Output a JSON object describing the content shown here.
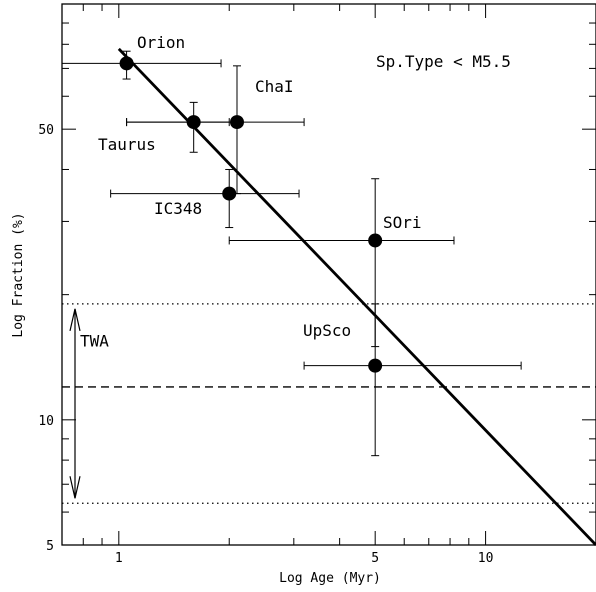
{
  "chart_data": {
    "type": "scatter",
    "xscale": "log",
    "yscale": "log",
    "xlim": [
      0.7,
      20
    ],
    "ylim": [
      5,
      100
    ],
    "xlabel": "Log Age (Myr)",
    "ylabel": "Log Fraction (%)",
    "xticks_labeled": [
      1,
      5,
      10
    ],
    "yticks_labeled": [
      5,
      10,
      50
    ],
    "annotation": "Sp.Type < M5.5",
    "points": [
      {
        "label": "Orion",
        "x": 1.05,
        "y": 72,
        "xerr_low": 0.7,
        "xerr_high": 1.9,
        "yerr_low": 66,
        "yerr_high": 77
      },
      {
        "label": "Taurus",
        "x": 1.6,
        "y": 52,
        "xerr_low": 1.05,
        "xerr_high": 2.0,
        "yerr_low": 44,
        "yerr_high": 58
      },
      {
        "label": "ChaI",
        "x": 2.1,
        "y": 52,
        "xerr_low": 1.05,
        "xerr_high": 3.2,
        "yerr_low": 35,
        "yerr_high": 71
      },
      {
        "label": "IC348",
        "x": 2.0,
        "y": 35,
        "xerr_low": 0.95,
        "xerr_high": 3.1,
        "yerr_low": 29,
        "yerr_high": 40
      },
      {
        "label": "SOri",
        "x": 5.0,
        "y": 27,
        "xerr_low": 2.0,
        "xerr_high": 8.2,
        "yerr_low": 15,
        "yerr_high": 38
      },
      {
        "label": "UpSco",
        "x": 5.0,
        "y": 13.5,
        "xerr_low": 3.2,
        "xerr_high": 12.5,
        "yerr_low": 8.2,
        "yerr_high": 19
      }
    ],
    "fit_line": {
      "x": [
        1.0,
        20.0
      ],
      "y": [
        78.0,
        5.0
      ]
    },
    "twa": {
      "label": "TWA",
      "y_low": 6.3,
      "y_high": 19,
      "y_mid": 12
    }
  }
}
